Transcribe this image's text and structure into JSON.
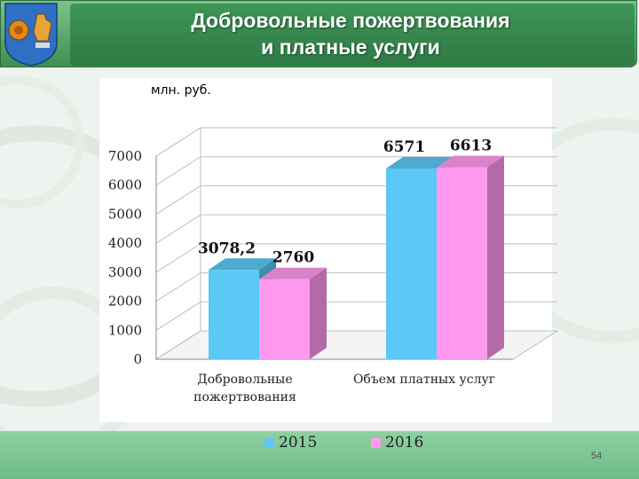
{
  "header": {
    "title_line1": "Добровольные пожертвования",
    "title_line2": "и платные услуги"
  },
  "colors": {
    "series_2015": "#5bc8f5",
    "series_2016": "#ff99ee",
    "header_green": "#3f9656",
    "footer_green": "#7cc592"
  },
  "icons": {
    "coat_of_arms": "coat-of-arms-icon"
  },
  "unit_label": "млн. руб.",
  "page_number": "54",
  "chart_data": {
    "type": "bar",
    "title": "",
    "ylabel": "млн. руб.",
    "xlabel": "",
    "categories": [
      "Добровольные пожертвования",
      "Объем платных услуг"
    ],
    "category_lines": [
      [
        "Добровольные",
        "пожертвования"
      ],
      [
        "Объем платных услуг"
      ]
    ],
    "series": [
      {
        "name": "2015",
        "values": [
          3078.2,
          6571
        ],
        "labels": [
          "3078,2",
          "6571"
        ]
      },
      {
        "name": "2016",
        "values": [
          2760,
          6613
        ],
        "labels": [
          "2760",
          "6613"
        ]
      }
    ],
    "ylim": [
      0,
      7000
    ],
    "yticks": [
      "0",
      "1000",
      "2000",
      "3000",
      "4000",
      "5000",
      "6000",
      "7000"
    ],
    "grid": true,
    "three_d": true,
    "legend": "bottom"
  }
}
